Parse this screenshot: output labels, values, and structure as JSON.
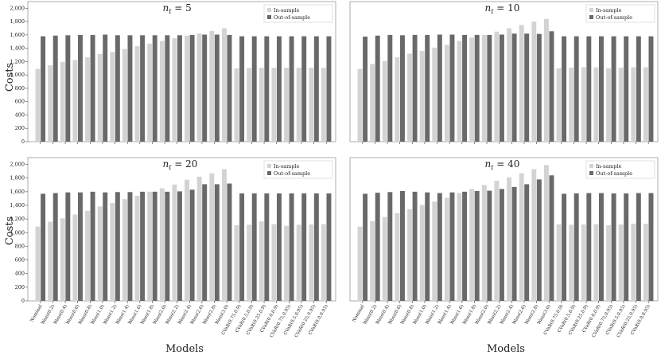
{
  "figure": {
    "ylabel": "Costs",
    "xlabel": "Models"
  },
  "legend": {
    "in_sample": "In-sample",
    "out_of_sample": "Out-of-sample"
  },
  "colors": {
    "in_sample": "#d3d3d3",
    "out_of_sample": "#696969",
    "frame": "#999999",
    "grid": "#e6e6e6"
  },
  "chart_data": [
    {
      "type": "bar",
      "title_parts": [
        "n",
        "t",
        " = 5"
      ],
      "ylim": [
        0,
        2100
      ],
      "yticks": [
        0,
        200,
        400,
        600,
        800,
        "1,000",
        "1,200",
        "1,400",
        "1,600",
        "1,800",
        "2,000"
      ],
      "categories": [
        "Nominal",
        "Wass(0.2)",
        "Wass(0.4)",
        "Wass(0.6)",
        "Wass(0.8)",
        "Wass(1.0)",
        "Wass(1.2)",
        "Wass(1.4)",
        "Wass(1.6)",
        "Wass(1.8)",
        "Wass(2.0)",
        "Wass(2.2)",
        "Wass(2.4)",
        "Wass(2.6)",
        "Wass(2.8)",
        "Wass(3.0)",
        "CVaR(0.75,0.9)",
        "CVaR(0.5,0.9)",
        "CVaR(0.25,0.9)",
        "CVaR(0.0,0.9)",
        "CVaR(0.75,0.95)",
        "CVaR(0.5,0.95)",
        "CVaR(0.25,0.95)",
        "CVaR(0.0,0.95)"
      ],
      "series": [
        {
          "name": "In-sample",
          "values": [
            1090,
            1145,
            1195,
            1225,
            1265,
            1315,
            1345,
            1390,
            1430,
            1470,
            1510,
            1550,
            1590,
            1620,
            1660,
            1700,
            1100,
            1105,
            1108,
            1108,
            1108,
            1108,
            1108,
            1108
          ]
        },
        {
          "name": "Out-of-sample",
          "values": [
            1580,
            1590,
            1595,
            1600,
            1600,
            1605,
            1595,
            1595,
            1595,
            1595,
            1595,
            1595,
            1600,
            1605,
            1605,
            1600,
            1580,
            1580,
            1580,
            1580,
            1580,
            1580,
            1580,
            1580
          ]
        }
      ]
    },
    {
      "type": "bar",
      "title_parts": [
        "n",
        "t",
        " = 10"
      ],
      "ylim": [
        0,
        2100
      ],
      "yticks": [],
      "categories": [
        "Nominal",
        "Wass(0.2)",
        "Wass(0.4)",
        "Wass(0.6)",
        "Wass(0.8)",
        "Wass(1.0)",
        "Wass(1.2)",
        "Wass(1.4)",
        "Wass(1.6)",
        "Wass(1.8)",
        "Wass(2.0)",
        "Wass(2.2)",
        "Wass(2.4)",
        "Wass(2.6)",
        "Wass(2.8)",
        "Wass(3.0)",
        "CVaR(0.75,0.9)",
        "CVaR(0.5,0.9)",
        "CVaR(0.25,0.9)",
        "CVaR(0.0,0.9)",
        "CVaR(0.75,0.95)",
        "CVaR(0.5,0.95)",
        "CVaR(0.25,0.95)",
        "CVaR(0.0,0.95)"
      ],
      "series": [
        {
          "name": "In-sample",
          "values": [
            1090,
            1165,
            1210,
            1265,
            1320,
            1360,
            1410,
            1450,
            1510,
            1560,
            1600,
            1650,
            1700,
            1750,
            1800,
            1840,
            1100,
            1110,
            1115,
            1115,
            1100,
            1110,
            1115,
            1115
          ]
        },
        {
          "name": "Out-of-sample",
          "values": [
            1575,
            1590,
            1600,
            1595,
            1600,
            1600,
            1605,
            1605,
            1600,
            1600,
            1600,
            1605,
            1620,
            1620,
            1615,
            1655,
            1580,
            1580,
            1580,
            1580,
            1580,
            1580,
            1580,
            1580
          ]
        }
      ]
    },
    {
      "type": "bar",
      "title_parts": [
        "n",
        "t",
        " = 20"
      ],
      "ylim": [
        0,
        2100
      ],
      "yticks": [
        0,
        200,
        400,
        600,
        800,
        "1,000",
        "1,200",
        "1,400",
        "1,600",
        "1,800",
        "2,000"
      ],
      "categories": [
        "Nominal",
        "Wass(0.2)",
        "Wass(0.4)",
        "Wass(0.6)",
        "Wass(0.8)",
        "Wass(1.0)",
        "Wass(1.2)",
        "Wass(1.4)",
        "Wass(1.6)",
        "Wass(1.8)",
        "Wass(2.0)",
        "Wass(2.2)",
        "Wass(2.4)",
        "Wass(2.6)",
        "Wass(2.8)",
        "Wass(3.0)",
        "CVaR(0.75,0.9)",
        "CVaR(0.5,0.9)",
        "CVaR(0.25,0.9)",
        "CVaR(0.0,0.9)",
        "CVaR(0.75,0.95)",
        "CVaR(0.5,0.95)",
        "CVaR(0.25,0.95)",
        "CVaR(0.0,0.95)"
      ],
      "series": [
        {
          "name": "In-sample",
          "values": [
            1090,
            1160,
            1210,
            1265,
            1320,
            1385,
            1435,
            1490,
            1540,
            1600,
            1650,
            1705,
            1775,
            1820,
            1870,
            1930,
            1110,
            1115,
            1165,
            1125,
            1100,
            1115,
            1120,
            1125
          ]
        },
        {
          "name": "Out-of-sample",
          "values": [
            1570,
            1580,
            1590,
            1590,
            1600,
            1590,
            1595,
            1595,
            1600,
            1600,
            1600,
            1605,
            1630,
            1710,
            1710,
            1720,
            1575,
            1575,
            1575,
            1575,
            1575,
            1575,
            1575,
            1575
          ]
        }
      ]
    },
    {
      "type": "bar",
      "title_parts": [
        "n",
        "t",
        " = 40"
      ],
      "ylim": [
        0,
        2100
      ],
      "yticks": [],
      "categories": [
        "Nominal",
        "Wass(0.2)",
        "Wass(0.4)",
        "Wass(0.6)",
        "Wass(0.8)",
        "Wass(1.0)",
        "Wass(1.2)",
        "Wass(1.4)",
        "Wass(1.6)",
        "Wass(1.8)",
        "Wass(2.0)",
        "Wass(2.2)",
        "Wass(2.4)",
        "Wass(2.6)",
        "Wass(2.8)",
        "Wass(3.0)",
        "CVaR(0.75,0.9)",
        "CVaR(0.5,0.9)",
        "CVaR(0.25,0.9)",
        "CVaR(0.0,0.9)",
        "CVaR(0.75,0.95)",
        "CVaR(0.5,0.95)",
        "CVaR(0.25,0.95)",
        "CVaR(0.0,0.95)"
      ],
      "series": [
        {
          "name": "In-sample",
          "values": [
            1090,
            1170,
            1230,
            1285,
            1345,
            1405,
            1455,
            1510,
            1580,
            1640,
            1700,
            1760,
            1810,
            1870,
            1930,
            1990,
            1120,
            1115,
            1120,
            1125,
            1110,
            1120,
            1130,
            1130
          ]
        },
        {
          "name": "Out-of-sample",
          "values": [
            1570,
            1585,
            1595,
            1610,
            1600,
            1590,
            1580,
            1590,
            1600,
            1610,
            1615,
            1640,
            1670,
            1710,
            1780,
            1840,
            1570,
            1575,
            1580,
            1580,
            1575,
            1575,
            1580,
            1580
          ]
        }
      ]
    }
  ]
}
